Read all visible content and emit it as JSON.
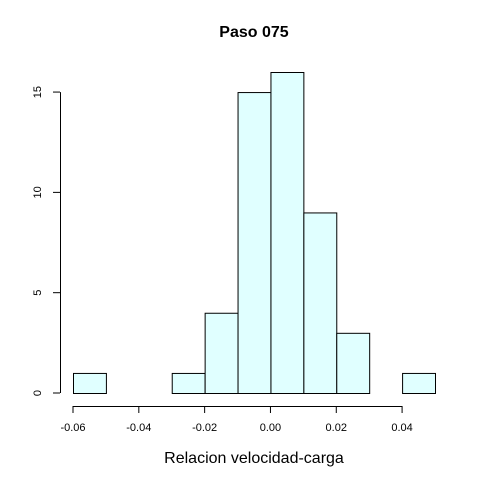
{
  "chart_data": {
    "type": "bar",
    "title": "Paso 075",
    "xlabel": "Relacion velocidad-carga",
    "ylabel": "",
    "bin_edges": [
      -0.06,
      -0.05,
      -0.04,
      -0.03,
      -0.02,
      -0.01,
      0.0,
      0.01,
      0.02,
      0.03,
      0.04,
      0.05
    ],
    "values": [
      1,
      0,
      0,
      1,
      4,
      15,
      16,
      9,
      3,
      0,
      1
    ],
    "xlim": [
      -0.06,
      0.05
    ],
    "ylim": [
      0,
      16
    ],
    "x_ticks": [
      -0.06,
      -0.04,
      -0.02,
      0.0,
      0.02,
      0.04
    ],
    "x_tick_labels": [
      "-0.06",
      "-0.04",
      "-0.02",
      "0.00",
      "0.02",
      "0.04"
    ],
    "y_ticks": [
      0,
      5,
      10,
      15
    ],
    "y_tick_labels": [
      "0",
      "5",
      "10",
      "15"
    ],
    "bar_color": "#e0ffff",
    "edge_color": "#000000",
    "grid": false,
    "legend": "none"
  }
}
